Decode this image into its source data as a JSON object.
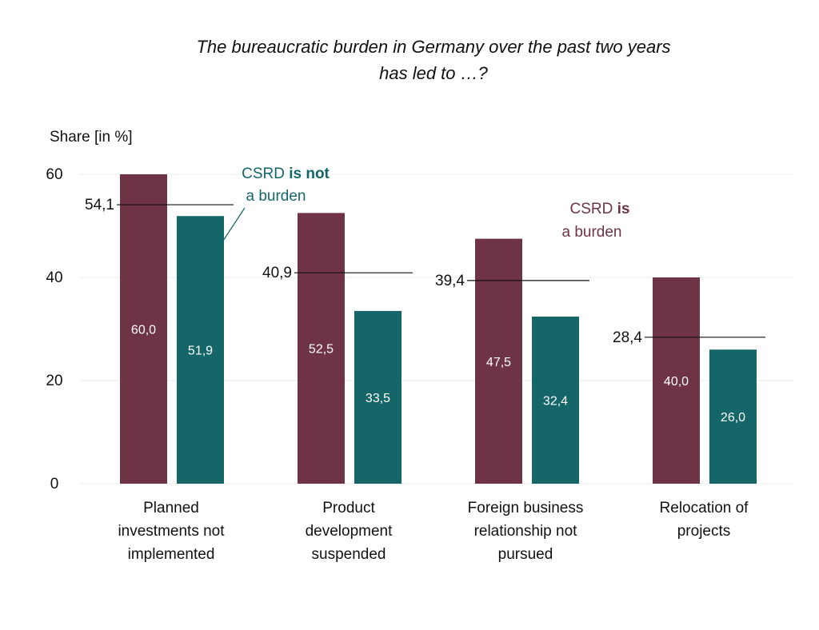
{
  "chart_data": {
    "type": "bar",
    "title_lines": [
      "The bureaucratic burden in Germany over the past two years",
      "has led to …?"
    ],
    "ylabel": "Share [in %]",
    "xlabel": "",
    "ylim": [
      0,
      60
    ],
    "yticks": [
      0,
      20,
      40,
      60
    ],
    "grid": true,
    "categories": [
      [
        "Planned",
        "investments not",
        "implemented"
      ],
      [
        "Product",
        "development",
        "suspended"
      ],
      [
        "Foreign business",
        "relationship not",
        "pursued"
      ],
      [
        "Relocation of",
        "projects"
      ]
    ],
    "series": [
      {
        "key": "burden",
        "color": "#6e3446",
        "values": [
          60.0,
          52.5,
          47.5,
          40.0
        ],
        "labels": [
          "60,0",
          "52,5",
          "47,5",
          "40,0"
        ]
      },
      {
        "key": "not_burden",
        "color": "#146668",
        "values": [
          51.9,
          33.5,
          32.4,
          26.0
        ],
        "labels": [
          "51,9",
          "33,5",
          "32,4",
          "26,0"
        ]
      }
    ],
    "reference_lines": {
      "values": [
        54.1,
        40.9,
        39.4,
        28.4
      ],
      "labels": [
        "54,1",
        "40,9",
        "39,4",
        "28,4"
      ]
    },
    "annotations": {
      "not_burden": {
        "line1_normal": "CSRD ",
        "line1_bold": "is not",
        "line2": "a burden",
        "color": "#146668"
      },
      "burden": {
        "line1_normal": "CSRD ",
        "line1_bold": "is",
        "line2": "a burden",
        "color": "#6e3446"
      }
    }
  }
}
